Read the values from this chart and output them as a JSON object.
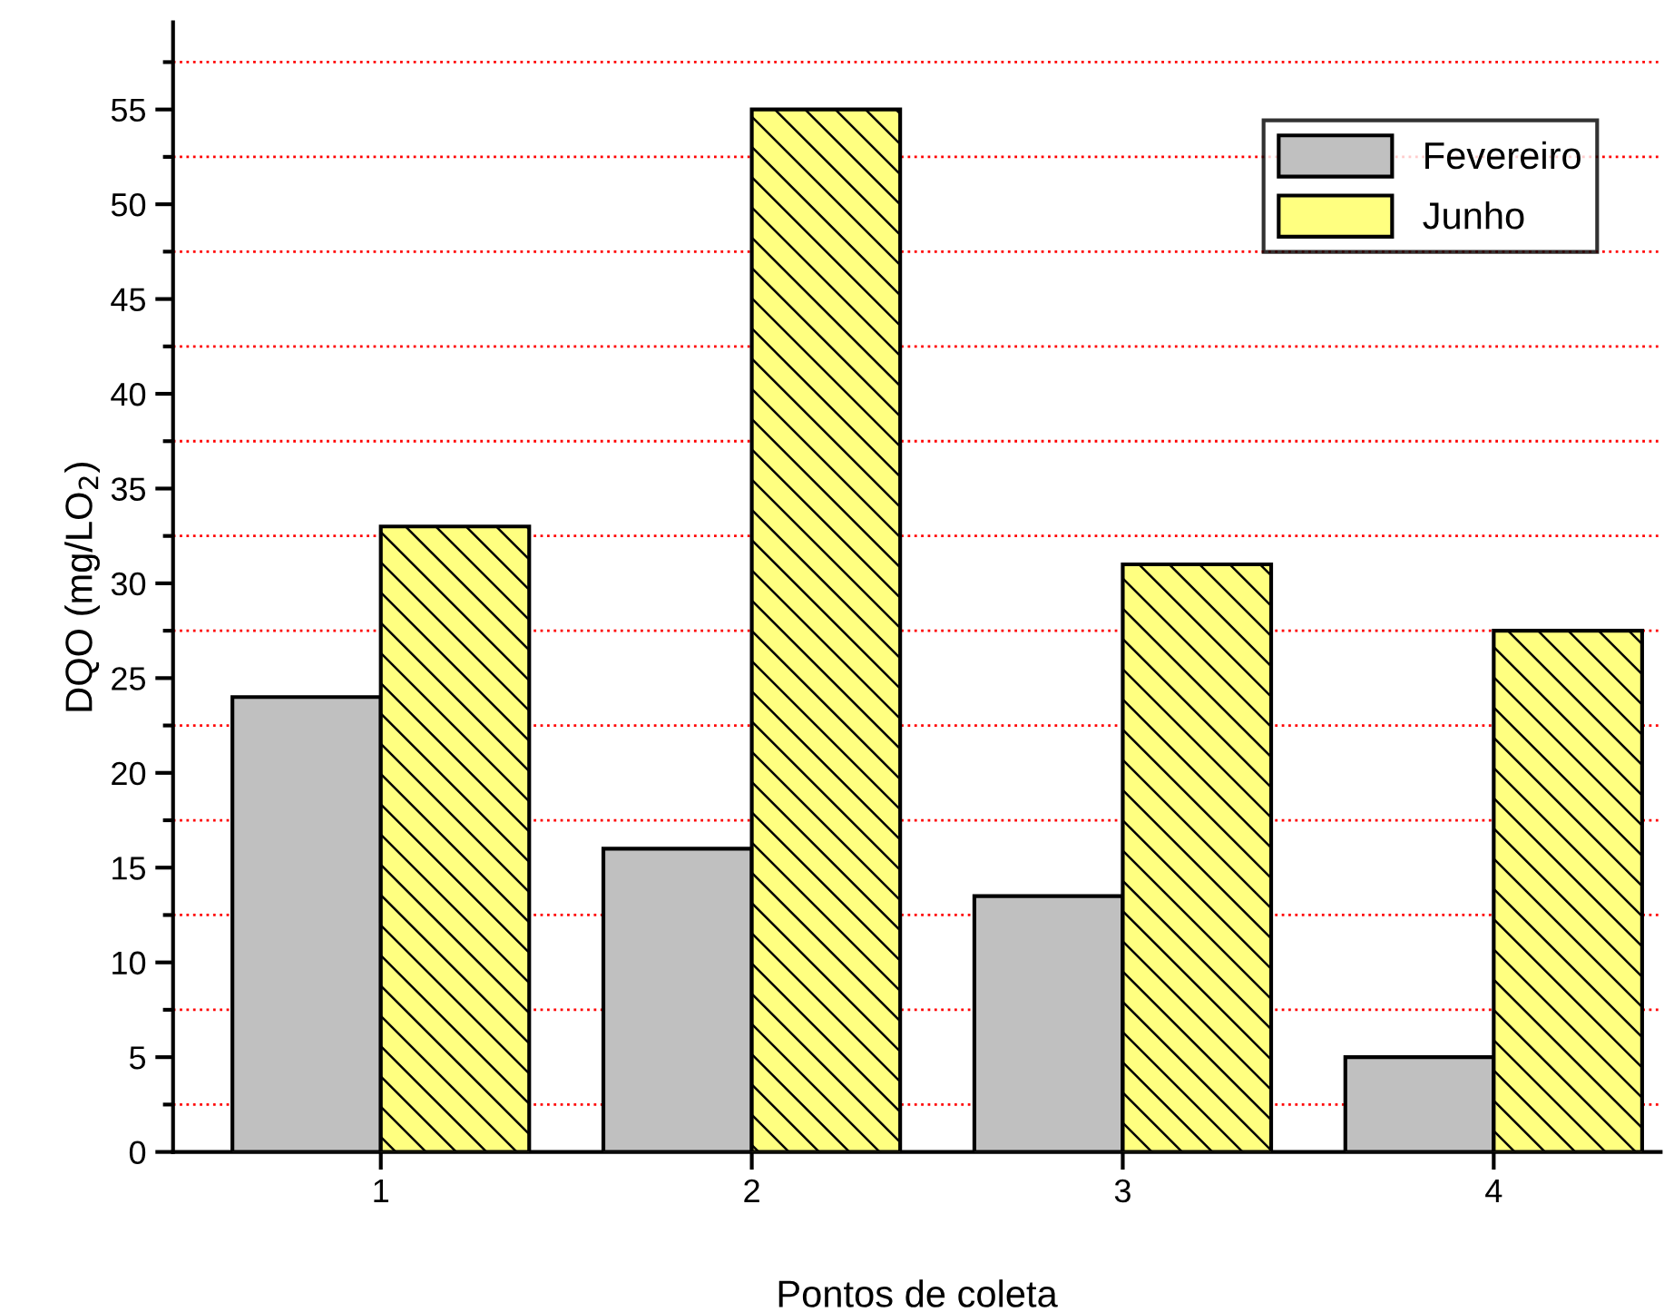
{
  "chart_data": {
    "type": "bar",
    "xlabel": "Pontos de coleta",
    "ylabel": "DQO (mg/LO$_{2}$)",
    "categories": [
      "1",
      "2",
      "3",
      "4"
    ],
    "series": [
      {
        "name": "Fevereiro",
        "color": "#c0c0c0",
        "values": [
          24,
          16,
          13.5,
          5
        ]
      },
      {
        "name": "Junho",
        "color": "#ffff80",
        "values": [
          33,
          55,
          31,
          27.5
        ]
      }
    ],
    "ylim": [
      0,
      59.6
    ],
    "yticks": [
      0,
      {
        "value": 2.5,
        "label": null
      },
      5,
      {
        "value": 7.5,
        "label": null
      },
      10,
      {
        "value": 12.5,
        "label": null
      },
      15,
      {
        "value": 17.5,
        "label": null
      },
      20,
      {
        "value": 22.5,
        "label": null
      },
      25,
      {
        "value": 27.5,
        "label": null
      },
      30,
      {
        "value": 32.5,
        "label": null
      },
      35,
      {
        "value": 37.5,
        "label": null
      },
      40,
      {
        "value": 42.5,
        "label": null
      },
      45,
      {
        "value": 47.5,
        "label": null
      },
      50,
      {
        "value": 52.5,
        "label": null
      },
      55,
      {
        "value": 57.5,
        "label": null
      }
    ],
    "grid": "y",
    "legend": "top right"
  }
}
